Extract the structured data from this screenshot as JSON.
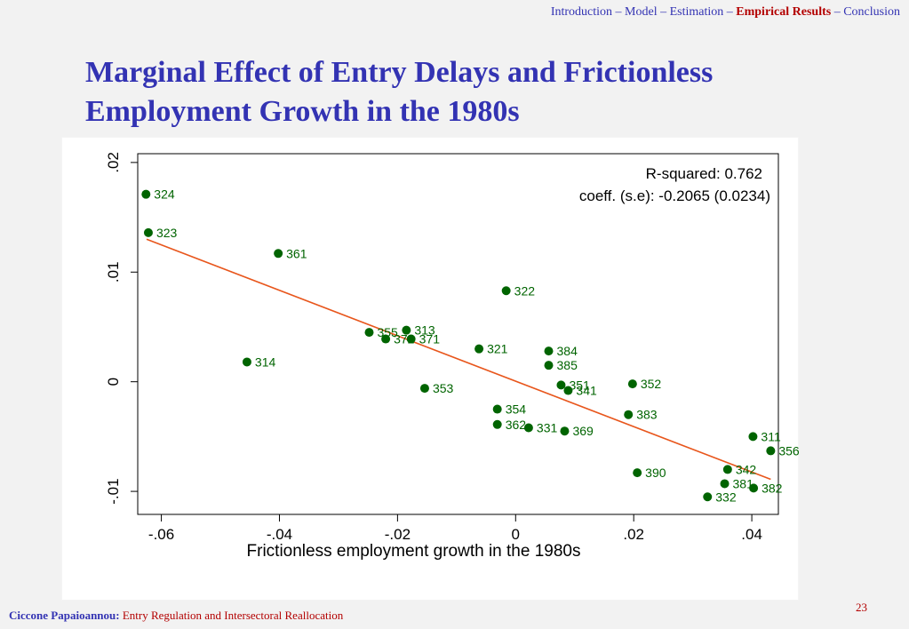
{
  "nav": {
    "items": [
      "Introduction",
      "Model",
      "Estimation",
      "Empirical Results",
      "Conclusion"
    ],
    "separator": " – ",
    "active_index": 3
  },
  "slide": {
    "title": "Marginal Effect of Entry Delays and Frictionless Employment Growth in the 1980s",
    "page_number": "23"
  },
  "footer": {
    "author": "Ciccone Papaioannou:",
    "paper": "Entry Regulation and Intersectoral Reallocation"
  },
  "colors": {
    "accent": "#3333b3",
    "highlight": "#b30000",
    "marker": "#006400",
    "label": "#006400",
    "fit_line": "#e8561c"
  },
  "chart_data": {
    "type": "scatter",
    "xlabel": "Frictionless employment growth in the 1980s",
    "ylabel": "",
    "xlim": [
      -0.064,
      0.0445
    ],
    "ylim": [
      -0.0121,
      0.0208
    ],
    "xticks": [
      -0.06,
      -0.04,
      -0.02,
      0,
      0.02,
      0.04
    ],
    "xtick_labels": [
      "-.06",
      "-.04",
      "-.02",
      "0",
      ".02",
      ".04"
    ],
    "yticks": [
      -0.01,
      0,
      0.01,
      0.02
    ],
    "ytick_labels": [
      "-.01",
      "0",
      ".01",
      ".02"
    ],
    "grid": false,
    "annotations": [
      "R-squared: 0.762",
      "coeff. (s.e): -0.2065 (0.0234)"
    ],
    "fit_line": {
      "x": [
        -0.0625,
        0.0432
      ],
      "y": [
        0.013,
        -0.0089
      ]
    },
    "points": [
      {
        "label": "324",
        "x": -0.0626,
        "y": 0.0171
      },
      {
        "label": "323",
        "x": -0.0622,
        "y": 0.0136
      },
      {
        "label": "361",
        "x": -0.0402,
        "y": 0.0117
      },
      {
        "label": "322",
        "x": -0.0016,
        "y": 0.0083
      },
      {
        "label": "355",
        "x": -0.0248,
        "y": 0.0045
      },
      {
        "label": "313",
        "x": -0.0185,
        "y": 0.0047
      },
      {
        "label": "372",
        "x": -0.022,
        "y": 0.0039
      },
      {
        "label": "371",
        "x": -0.0177,
        "y": 0.0039
      },
      {
        "label": "314",
        "x": -0.0455,
        "y": 0.0018
      },
      {
        "label": "321",
        "x": -0.0062,
        "y": 0.003
      },
      {
        "label": "384",
        "x": 0.0056,
        "y": 0.0028
      },
      {
        "label": "385",
        "x": 0.0056,
        "y": 0.0015
      },
      {
        "label": "353",
        "x": -0.0154,
        "y": -0.0006
      },
      {
        "label": "351",
        "x": 0.0077,
        "y": -0.0003
      },
      {
        "label": "341",
        "x": 0.0089,
        "y": -0.0008
      },
      {
        "label": "352",
        "x": 0.0198,
        "y": -0.0002
      },
      {
        "label": "354",
        "x": -0.0031,
        "y": -0.0025
      },
      {
        "label": "362",
        "x": -0.0031,
        "y": -0.0039
      },
      {
        "label": "331",
        "x": 0.0022,
        "y": -0.0042
      },
      {
        "label": "369",
        "x": 0.0083,
        "y": -0.0045
      },
      {
        "label": "383",
        "x": 0.0191,
        "y": -0.003
      },
      {
        "label": "311",
        "x": 0.0402,
        "y": -0.005
      },
      {
        "label": "356",
        "x": 0.0432,
        "y": -0.0063
      },
      {
        "label": "390",
        "x": 0.0206,
        "y": -0.0083
      },
      {
        "label": "342",
        "x": 0.0359,
        "y": -0.008
      },
      {
        "label": "381",
        "x": 0.0354,
        "y": -0.0093
      },
      {
        "label": "382",
        "x": 0.0403,
        "y": -0.0097
      },
      {
        "label": "332",
        "x": 0.0325,
        "y": -0.0105
      }
    ]
  }
}
